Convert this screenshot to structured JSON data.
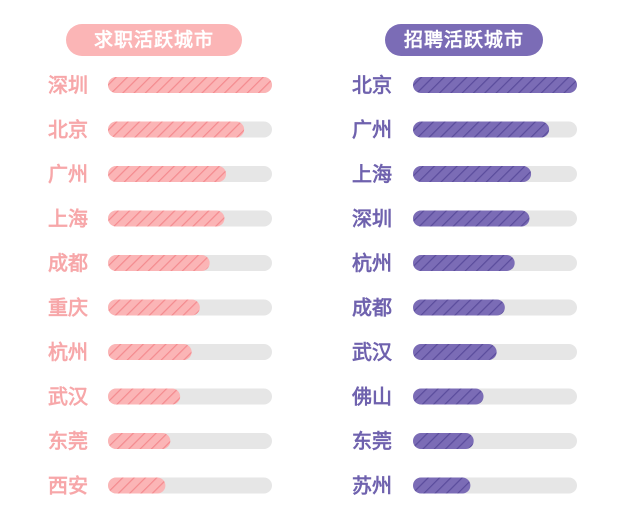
{
  "colors": {
    "left_accent": "#fbb5b6",
    "left_text": "#f7a7a9",
    "left_stripe": "#f48a8e",
    "right_accent": "#7b6cb6",
    "right_text": "#6f62ae",
    "right_stripe": "#5a4c9c",
    "track": "#e6e6e6"
  },
  "chart_data": [
    {
      "type": "bar",
      "orientation": "horizontal",
      "title": "求职活跃城市",
      "categories": [
        "深圳",
        "北京",
        "广州",
        "上海",
        "成都",
        "重庆",
        "杭州",
        "武汉",
        "东莞",
        "西安"
      ],
      "values": [
        100,
        83,
        72,
        71,
        62,
        56,
        51,
        44,
        38,
        35
      ],
      "xlim": [
        0,
        100
      ],
      "grid": false
    },
    {
      "type": "bar",
      "orientation": "horizontal",
      "title": "招聘活跃城市",
      "categories": [
        "北京",
        "广州",
        "上海",
        "深圳",
        "杭州",
        "成都",
        "武汉",
        "佛山",
        "东莞",
        "苏州"
      ],
      "values": [
        100,
        83,
        72,
        71,
        62,
        56,
        51,
        43,
        37,
        35
      ],
      "xlim": [
        0,
        100
      ],
      "grid": false
    }
  ]
}
